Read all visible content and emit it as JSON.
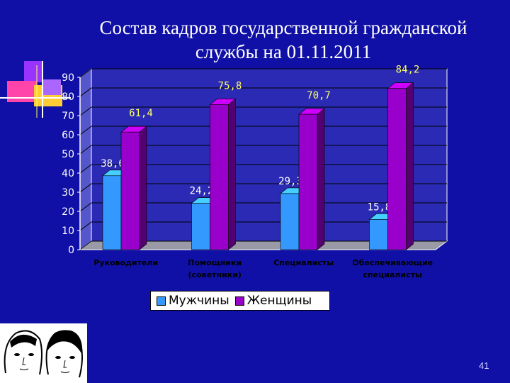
{
  "slide": {
    "title_line1": "Состав кадров государственной гражданской",
    "title_line2": "службы на 01.11.2011",
    "page_number": "41",
    "background": "#1010a6"
  },
  "legend": {
    "series": [
      {
        "name": "Мужчины",
        "color": "#3399ff"
      },
      {
        "name": "Женщины",
        "color": "#9900cc"
      }
    ]
  },
  "chart_data": {
    "type": "bar",
    "categories": [
      [
        "Руководители"
      ],
      [
        "Помощники",
        "(советники)"
      ],
      [
        "Специалисты"
      ],
      [
        "Обеспечивающие",
        "специалисты"
      ]
    ],
    "series": [
      {
        "name": "Мужчины",
        "values": [
          38.6,
          24.2,
          29.3,
          15.8
        ],
        "labels": [
          "38,6",
          "24,2",
          "29,3",
          "15,8"
        ],
        "color": "#3399ff"
      },
      {
        "name": "Женщины",
        "values": [
          61.4,
          75.8,
          70.7,
          84.2
        ],
        "labels": [
          "61,4",
          "75,8",
          "70,7",
          "84,2"
        ],
        "color": "#9900cc"
      }
    ],
    "yticks": [
      0,
      10,
      20,
      30,
      40,
      50,
      60,
      70,
      80,
      90
    ],
    "ylim": [
      0,
      90
    ],
    "grid": true,
    "legend_position": "bottom",
    "title": "",
    "xlabel": "",
    "ylabel": ""
  },
  "icons": {
    "decoration": "colored-squares-decoration",
    "illustration": "faces-illustration"
  }
}
